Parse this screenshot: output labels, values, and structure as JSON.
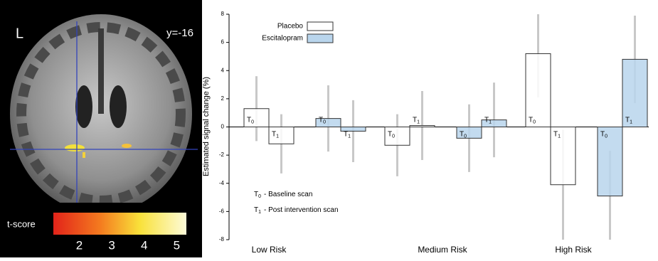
{
  "brain_panel": {
    "side_label": "L",
    "slice_label": "y=-16",
    "colorbar": {
      "label": "t-score",
      "clim": [
        1.2,
        5.3
      ],
      "ticks": [
        2,
        3,
        4,
        5
      ]
    }
  },
  "chart_data": {
    "type": "bar",
    "ylabel": "Estimated signal change (%)",
    "categories": [
      "Low Risk",
      "Medium Risk",
      "High Risk"
    ],
    "ylim": [
      -8,
      8
    ],
    "yticks": [
      -8,
      -6,
      -4,
      -2,
      0,
      2,
      4,
      6,
      8
    ],
    "timepoints": [
      {
        "symbol": "T",
        "subscript": "0",
        "description": "- Baseline scan"
      },
      {
        "symbol": "T",
        "subscript": "1",
        "description": "- Post intervention scan"
      }
    ],
    "series": [
      {
        "name": "Placebo",
        "color": "#ffffff",
        "timepoints": [
          {
            "values": [
              1.3,
              -1.3,
              5.2
            ],
            "errors": [
              2.3,
              2.2,
              3.1
            ]
          },
          {
            "values": [
              -1.2,
              0.1,
              -4.1
            ],
            "errors": [
              2.1,
              2.45,
              3.9
            ]
          }
        ]
      },
      {
        "name": "Escitalopram",
        "color": "#b9d5ec",
        "timepoints": [
          {
            "values": [
              0.6,
              -0.8,
              -4.9
            ],
            "errors": [
              2.35,
              2.4,
              3.2
            ]
          },
          {
            "values": [
              -0.3,
              0.5,
              4.8
            ],
            "errors": [
              2.2,
              2.65,
              3.1
            ]
          }
        ]
      }
    ]
  }
}
